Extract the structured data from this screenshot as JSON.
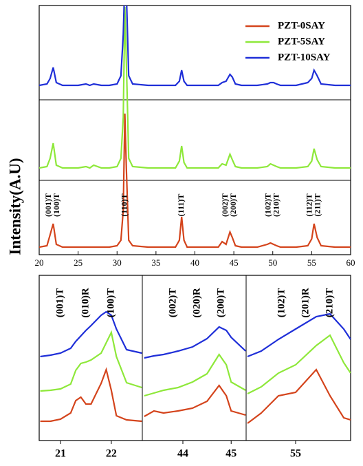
{
  "chart_data": [
    {
      "type": "line",
      "y_label": "Intensity(A.U)",
      "legend": "upper right",
      "xlim": [
        20,
        60
      ],
      "xticks": [
        20,
        25,
        30,
        35,
        40,
        45,
        50,
        55,
        60
      ],
      "x": [
        20,
        21,
        21.4,
        21.8,
        22.2,
        23,
        25,
        26,
        26.5,
        27,
        28,
        29,
        30,
        30.5,
        30.8,
        31,
        31.2,
        31.5,
        32,
        34,
        36,
        37.5,
        38,
        38.3,
        38.6,
        39,
        41,
        43,
        43.5,
        44,
        44.5,
        44.8,
        45.2,
        46,
        48,
        49.3,
        49.7,
        50.1,
        50.5,
        51,
        53,
        54.5,
        55,
        55.3,
        55.7,
        56.2,
        58,
        60
      ],
      "series": [
        {
          "name": "PZT-0SAY",
          "color": "#d4441c",
          "values": [
            3,
            4,
            12,
            20,
            5,
            3,
            3,
            3,
            3,
            3,
            3,
            3,
            4,
            8,
            30,
            100,
            60,
            8,
            4,
            3,
            3,
            3,
            8,
            25,
            8,
            3,
            3,
            3,
            7,
            5,
            14,
            10,
            4,
            3,
            3,
            5,
            6,
            5,
            4,
            3,
            3,
            4,
            9,
            20,
            10,
            4,
            3,
            3
          ]
        },
        {
          "name": "PZT-5SAY",
          "color": "#8ee83a",
          "values": [
            3,
            4,
            10,
            21,
            5,
            3,
            3,
            4,
            3,
            5,
            3,
            3,
            4,
            10,
            40,
            120,
            80,
            10,
            4,
            3,
            3,
            3,
            8,
            19,
            7,
            3,
            3,
            3,
            6,
            5,
            13,
            9,
            4,
            3,
            3,
            4,
            6,
            5,
            4,
            3,
            3,
            4,
            8,
            17,
            9,
            4,
            3,
            3
          ]
        },
        {
          "name": "PZT-10SAY",
          "color": "#1f2fd8",
          "values": [
            3,
            4,
            8,
            16,
            5,
            3,
            3,
            4,
            3,
            4,
            3,
            3,
            4,
            10,
            40,
            80,
            70,
            10,
            4,
            3,
            3,
            3,
            6,
            14,
            6,
            3,
            3,
            3,
            5,
            6,
            11,
            9,
            4,
            3,
            3,
            4,
            5,
            5,
            4,
            3,
            3,
            5,
            8,
            14,
            10,
            4,
            3,
            3
          ]
        }
      ],
      "annotations": [
        {
          "x": 21.8,
          "lines": [
            "(001)T",
            "(100)T"
          ]
        },
        {
          "x": 31,
          "lines": [
            "(110)T"
          ]
        },
        {
          "x": 38.3,
          "lines": [
            "(111)T"
          ]
        },
        {
          "x": 44.5,
          "lines": [
            "(002)T",
            "(200)T"
          ]
        },
        {
          "x": 50,
          "lines": [
            "(102)T",
            "(210)T"
          ]
        },
        {
          "x": 55.3,
          "lines": [
            "(112)T",
            "(211)T"
          ]
        }
      ]
    },
    {
      "type": "line",
      "xlim": [
        20.58,
        22.61
      ],
      "xticks": [
        21,
        22
      ],
      "x": [
        20.6,
        20.8,
        21.0,
        21.2,
        21.3,
        21.4,
        21.5,
        21.6,
        21.8,
        21.9,
        22.0,
        22.1,
        22.3,
        22.6
      ],
      "series": [
        {
          "color": "#d4441c",
          "values": [
            0,
            0,
            3,
            12,
            30,
            35,
            25,
            25,
            55,
            75,
            45,
            8,
            2,
            0
          ]
        },
        {
          "color": "#8ee83a",
          "values": [
            0,
            1,
            3,
            10,
            30,
            40,
            42,
            45,
            55,
            70,
            85,
            50,
            12,
            5
          ]
        },
        {
          "color": "#1f2fd8",
          "values": [
            0,
            2,
            5,
            12,
            22,
            30,
            38,
            45,
            60,
            65,
            60,
            40,
            10,
            5
          ]
        }
      ],
      "annotations": [
        {
          "x": 21.0,
          "lines": [
            "(001)T"
          ]
        },
        {
          "x": 21.5,
          "lines": [
            "(010)R"
          ]
        },
        {
          "x": 22.0,
          "lines": [
            "(100)T"
          ]
        }
      ]
    },
    {
      "type": "line",
      "xlim": [
        43.16,
        45.31
      ],
      "xticks": [
        44,
        45
      ],
      "x": [
        43.2,
        43.4,
        43.6,
        43.9,
        44.2,
        44.5,
        44.75,
        44.9,
        45.0,
        45.3
      ],
      "series": [
        {
          "color": "#d4441c",
          "values": [
            0,
            8,
            5,
            8,
            12,
            22,
            45,
            30,
            8,
            2
          ]
        },
        {
          "color": "#8ee83a",
          "values": [
            0,
            4,
            8,
            12,
            20,
            32,
            60,
            45,
            20,
            8
          ]
        },
        {
          "color": "#1f2fd8",
          "values": [
            0,
            3,
            5,
            10,
            16,
            28,
            45,
            40,
            30,
            10
          ]
        }
      ],
      "annotations": [
        {
          "x": 43.8,
          "lines": [
            "(002)T"
          ]
        },
        {
          "x": 44.3,
          "lines": [
            "(020)R"
          ]
        },
        {
          "x": 44.8,
          "lines": [
            "(200)T"
          ]
        }
      ]
    },
    {
      "type": "line",
      "xlim": [
        54.28,
        55.8
      ],
      "xticks": [
        55
      ],
      "x": [
        54.3,
        54.5,
        54.75,
        55.0,
        55.3,
        55.5,
        55.7,
        55.8
      ],
      "series": [
        {
          "color": "#d4441c",
          "values": [
            0,
            15,
            40,
            45,
            78,
            40,
            8,
            5
          ]
        },
        {
          "color": "#8ee83a",
          "values": [
            0,
            10,
            30,
            42,
            70,
            85,
            45,
            30
          ]
        },
        {
          "color": "#1f2fd8",
          "values": [
            0,
            8,
            25,
            40,
            58,
            62,
            40,
            25
          ]
        }
      ],
      "annotations": [
        {
          "x": 54.8,
          "lines": [
            "(102)T"
          ]
        },
        {
          "x": 55.15,
          "lines": [
            "(201)R"
          ]
        },
        {
          "x": 55.5,
          "lines": [
            "(210)T"
          ]
        }
      ]
    }
  ]
}
